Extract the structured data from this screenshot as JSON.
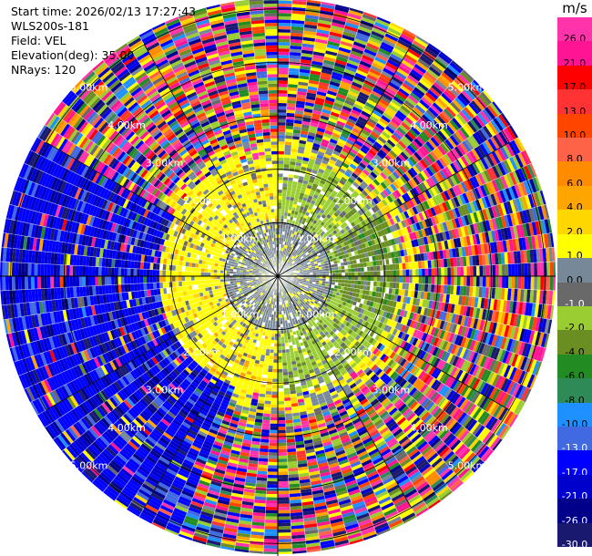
{
  "header": {
    "start_time": "Start time: 2026/02/13 17:27:43",
    "instrument": "WLS200s-181",
    "field": "Field: VEL",
    "elevation": "Elevation(deg): 35.00",
    "nrays": "NRays: 120"
  },
  "colorbar": {
    "unit": "m/s",
    "entries": [
      {
        "label": "26.0",
        "color": "#ff33aa"
      },
      {
        "label": "21.0",
        "color": "#ff1493"
      },
      {
        "label": "17.0",
        "color": "#ff0000"
      },
      {
        "label": "13.0",
        "color": "#ff3333"
      },
      {
        "label": "10.0",
        "color": "#ff4500"
      },
      {
        "label": "8.0",
        "color": "#ff6347"
      },
      {
        "label": "6.0",
        "color": "#ff8c00"
      },
      {
        "label": "4.0",
        "color": "#ffa500"
      },
      {
        "label": "2.0",
        "color": "#ffd700"
      },
      {
        "label": "1.0",
        "color": "#ffff00"
      },
      {
        "label": "0.0",
        "color": "#778899"
      },
      {
        "label": "-1.0",
        "color": "#696969"
      },
      {
        "label": "-2.0",
        "color": "#9acd32"
      },
      {
        "label": "-4.0",
        "color": "#6b8e23"
      },
      {
        "label": "-6.0",
        "color": "#228b22"
      },
      {
        "label": "-8.0",
        "color": "#2e8b57"
      },
      {
        "label": "-10.0",
        "color": "#1e90ff"
      },
      {
        "label": "-13.0",
        "color": "#4169e1"
      },
      {
        "label": "-17.0",
        "color": "#0000ff"
      },
      {
        "label": "-21.0",
        "color": "#0000cd"
      },
      {
        "label": "-26.0",
        "color": "#00008b"
      },
      {
        "label": "-30.0",
        "color": "#191970"
      }
    ]
  },
  "chart_data": {
    "type": "ppi",
    "field": "VEL",
    "nrays": 120,
    "elevation_deg": 35.0,
    "range_rings_km": [
      1.0,
      2.0,
      3.0,
      4.0,
      5.0
    ],
    "ring_labels": [
      "1.00km",
      "2.00km",
      "3.00km",
      "4.00km",
      "5.00km"
    ],
    "max_range_km": 5.2,
    "radial_line_angles_deg": [
      0,
      30,
      60,
      90,
      120,
      150,
      180,
      210,
      240,
      270,
      300,
      330
    ],
    "value_range": [
      -30.0,
      26.0
    ],
    "sectors": [
      {
        "az_from_deg": 0,
        "az_to_deg": 60,
        "range_km": [
          1.0,
          2.2
        ],
        "typical_vel": -2.0
      },
      {
        "az_from_deg": 60,
        "az_to_deg": 110,
        "range_km": [
          1.0,
          2.3
        ],
        "typical_vel": -4.0
      },
      {
        "az_from_deg": 110,
        "az_to_deg": 180,
        "range_km": [
          1.0,
          2.2
        ],
        "typical_vel": -2.0
      },
      {
        "az_from_deg": 180,
        "az_to_deg": 250,
        "range_km": [
          1.0,
          2.2
        ],
        "typical_vel": 1.0
      },
      {
        "az_from_deg": 250,
        "az_to_deg": 360,
        "range_km": [
          1.0,
          2.2
        ],
        "typical_vel": 1.0
      },
      {
        "az_from_deg": 0,
        "az_to_deg": 360,
        "range_km": [
          0.0,
          1.0
        ],
        "typical_vel": 0.0
      },
      {
        "az_from_deg": 200,
        "az_to_deg": 300,
        "range_km": [
          2.2,
          5.2
        ],
        "typical_vel": -17.0
      }
    ]
  }
}
